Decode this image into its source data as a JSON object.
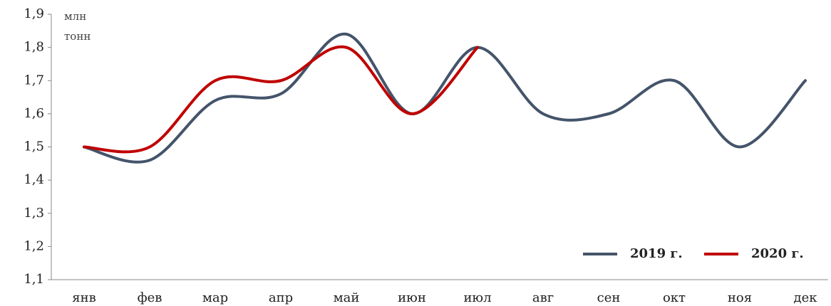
{
  "chart_data": {
    "type": "line",
    "y_label_lines": [
      "млн",
      "тонн"
    ],
    "categories": [
      "янв",
      "фев",
      "мар",
      "апр",
      "май",
      "июн",
      "июл",
      "авг",
      "сен",
      "окт",
      "ноя",
      "дек"
    ],
    "series": [
      {
        "name": "2019 г.",
        "color": "#44546a",
        "values": [
          1.5,
          1.46,
          1.64,
          1.66,
          1.84,
          1.6,
          1.8,
          1.6,
          1.6,
          1.7,
          1.5,
          1.7
        ]
      },
      {
        "name": "2020 г.",
        "color": "#c00000",
        "values": [
          1.5,
          1.5,
          1.7,
          1.7,
          1.8,
          1.6,
          1.8,
          null,
          null,
          null,
          null,
          null
        ]
      }
    ],
    "ylim": [
      1.1,
      1.9
    ],
    "yticks": [
      {
        "value": 1.1,
        "label": "1,1"
      },
      {
        "value": 1.2,
        "label": "1,2"
      },
      {
        "value": 1.3,
        "label": "1,3"
      },
      {
        "value": 1.4,
        "label": "1,4"
      },
      {
        "value": 1.5,
        "label": "1,5"
      },
      {
        "value": 1.6,
        "label": "1,6"
      },
      {
        "value": 1.7,
        "label": "1,7"
      },
      {
        "value": 1.8,
        "label": "1,8"
      },
      {
        "value": 1.9,
        "label": "1,9"
      }
    ],
    "legend": "bottom-right"
  }
}
